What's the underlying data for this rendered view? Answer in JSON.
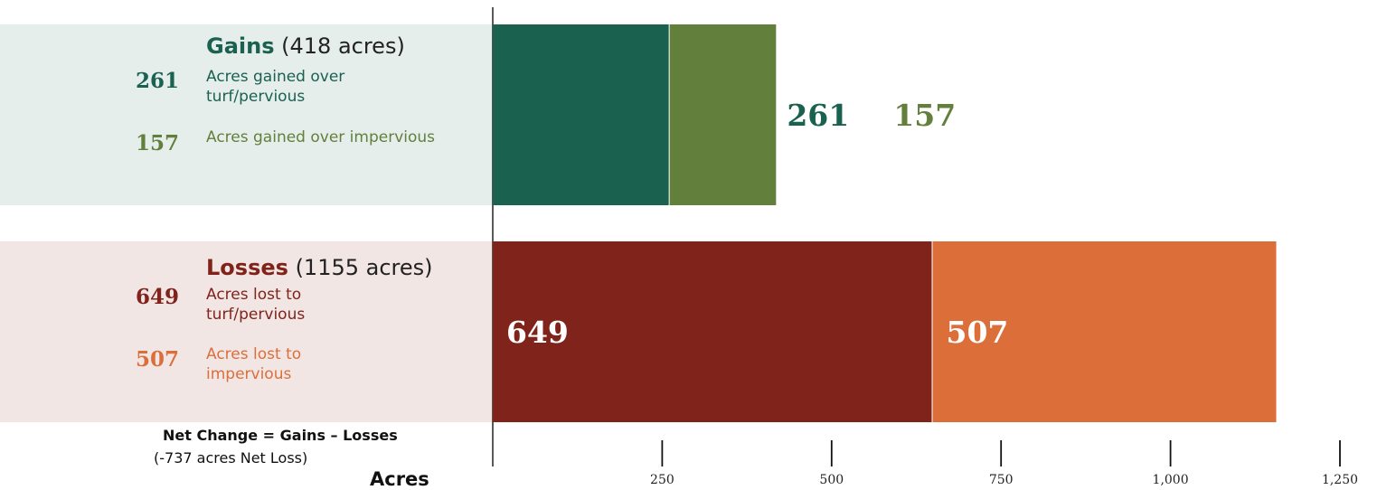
{
  "colors": {
    "gain_turf": "#1b6150",
    "gain_impervious": "#637f3c",
    "loss_turf": "#80231a",
    "loss_impervious": "#dc6e3a",
    "gains_panel": "#e6eeeb",
    "losses_panel": "#f2e6e5"
  },
  "gains": {
    "title": "Gains",
    "total": "(418 acres)",
    "items": [
      {
        "value": "261",
        "label": "Acres gained over turf/pervious"
      },
      {
        "value": "157",
        "label": "Acres gained over impervious"
      }
    ]
  },
  "losses": {
    "title": "Losses",
    "total": "(1155 acres)",
    "items": [
      {
        "value": "649",
        "label": "Acres lost to turf/pervious"
      },
      {
        "value": "507",
        "label": "Acres lost to impervious"
      }
    ]
  },
  "net": {
    "title": "Net Change = Gains – Losses",
    "subtitle": "(-737 acres Net Loss)"
  },
  "axis": {
    "title": "Acres"
  },
  "chart_data": {
    "type": "bar",
    "orientation": "horizontal",
    "stacked": true,
    "categories": [
      "Gains",
      "Losses"
    ],
    "series": [
      {
        "name": "turf/pervious",
        "values": [
          261,
          649
        ]
      },
      {
        "name": "impervious",
        "values": [
          157,
          507
        ]
      }
    ],
    "xlim": [
      0,
      1250
    ],
    "xticks": [
      250,
      500,
      750,
      1000,
      1250
    ],
    "xtick_labels": [
      "250",
      "500",
      "750",
      "1,000",
      "1,250"
    ],
    "xlabel": "Acres",
    "grid": false
  }
}
